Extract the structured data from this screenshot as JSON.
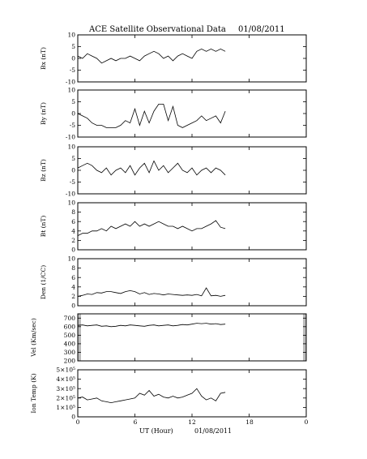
{
  "title": "ACE Satellite Observational Data",
  "title_date": "01/08/2011",
  "xlabel": "UT (Hour)",
  "xlabel_date": "01/08/2011",
  "x_ticks": [
    "0",
    "6",
    "12",
    "18",
    "0"
  ],
  "colors": {
    "line": "#000000",
    "gap_fill": "#bdbdbd",
    "frame": "#000000"
  },
  "chart_data": [
    {
      "type": "line",
      "ylabel": "Bx (nT)",
      "xlim": [
        0,
        24
      ],
      "ylim": [
        -10,
        10
      ],
      "yticks": [
        "-10",
        "-5",
        "0",
        "5",
        "10"
      ],
      "x": [
        0,
        0.5,
        1,
        1.5,
        2,
        2.5,
        3,
        3.5,
        4,
        4.5,
        5,
        5.5,
        6,
        6.5,
        7,
        7.5,
        8,
        8.5,
        9,
        9.5,
        10,
        10.5,
        11,
        11.5,
        12,
        12.5,
        13,
        13.5,
        14,
        14.5,
        15,
        15.5
      ],
      "values": [
        1,
        0,
        2,
        1,
        0,
        -2,
        -1,
        0,
        -1,
        0,
        0,
        1,
        0,
        -1,
        1,
        2,
        3,
        2,
        0,
        1,
        -1,
        1,
        2,
        1,
        0,
        3,
        4,
        3,
        4,
        3,
        4,
        3
      ],
      "data_gap": false
    },
    {
      "type": "line",
      "ylabel": "By (nT)",
      "xlim": [
        0,
        24
      ],
      "ylim": [
        -10,
        10
      ],
      "yticks": [
        "-10",
        "-5",
        "0",
        "5",
        "10"
      ],
      "x": [
        0,
        0.5,
        1,
        1.5,
        2,
        2.5,
        3,
        3.5,
        4,
        4.5,
        5,
        5.5,
        6,
        6.5,
        7,
        7.5,
        8,
        8.5,
        9,
        9.5,
        10,
        10.5,
        11,
        11.5,
        12,
        12.5,
        13,
        13.5,
        14,
        14.5,
        15,
        15.5
      ],
      "values": [
        0,
        -1,
        -2,
        -4,
        -5,
        -5,
        -6,
        -6,
        -6,
        -5,
        -3,
        -4,
        2,
        -5,
        1,
        -4,
        1,
        4,
        4,
        -3,
        3,
        -5,
        -6,
        -5,
        -4,
        -3,
        -1,
        -3,
        -2,
        -1,
        -4,
        1
      ],
      "data_gap": false
    },
    {
      "type": "line",
      "ylabel": "Bz (nT)",
      "xlim": [
        0,
        24
      ],
      "ylim": [
        -10,
        10
      ],
      "yticks": [
        "-10",
        "-5",
        "0",
        "5",
        "10"
      ],
      "x": [
        0,
        0.5,
        1,
        1.5,
        2,
        2.5,
        3,
        3.5,
        4,
        4.5,
        5,
        5.5,
        6,
        6.5,
        7,
        7.5,
        8,
        8.5,
        9,
        9.5,
        10,
        10.5,
        11,
        11.5,
        12,
        12.5,
        13,
        13.5,
        14,
        14.5,
        15,
        15.5
      ],
      "values": [
        1,
        2,
        3,
        2,
        0,
        -1,
        1,
        -2,
        0,
        1,
        -1,
        2,
        -2,
        1,
        3,
        -1,
        4,
        0,
        2,
        -1,
        1,
        3,
        0,
        -1,
        1,
        -2,
        0,
        1,
        -1,
        1,
        0,
        -2
      ],
      "data_gap": false
    },
    {
      "type": "line",
      "ylabel": "Bt (nT)",
      "xlim": [
        0,
        24
      ],
      "ylim": [
        0,
        10
      ],
      "yticks": [
        "0",
        "2",
        "4",
        "6",
        "8",
        "10"
      ],
      "x": [
        0,
        0.5,
        1,
        1.5,
        2,
        2.5,
        3,
        3.5,
        4,
        4.5,
        5,
        5.5,
        6,
        6.5,
        7,
        7.5,
        8,
        8.5,
        9,
        9.5,
        10,
        10.5,
        11,
        11.5,
        12,
        12.5,
        13,
        13.5,
        14,
        14.5,
        15,
        15.5
      ],
      "values": [
        3,
        3.5,
        3.5,
        4,
        4,
        4.5,
        4,
        5,
        4.5,
        5,
        5.5,
        5,
        6,
        5,
        5.5,
        5,
        5.5,
        6,
        5.5,
        5,
        5,
        4.5,
        5,
        4.5,
        4,
        4.5,
        4.5,
        5,
        5.5,
        6.2,
        4.8,
        4.5
      ],
      "data_gap": false
    },
    {
      "type": "line",
      "ylabel": "Den (1/CC)",
      "xlim": [
        0,
        24
      ],
      "ylim": [
        0,
        10
      ],
      "yticks": [
        "0",
        "2",
        "4",
        "6",
        "8",
        "10"
      ],
      "x": [
        0,
        0.5,
        1,
        1.5,
        2,
        2.5,
        3,
        3.5,
        4,
        4.5,
        5,
        5.5,
        6,
        6.5,
        7,
        7.5,
        8,
        8.5,
        9,
        9.5,
        10,
        10.5,
        11,
        11.5,
        12,
        12.5,
        13,
        13.5,
        14,
        14.5,
        15,
        15.5
      ],
      "values": [
        2,
        2.2,
        2.5,
        2.4,
        2.8,
        2.7,
        3,
        3,
        2.8,
        2.6,
        3,
        3.2,
        3,
        2.5,
        2.8,
        2.4,
        2.6,
        2.5,
        2.3,
        2.5,
        2.4,
        2.3,
        2.2,
        2.3,
        2.2,
        2.4,
        2.1,
        3.8,
        2.1,
        2.2,
        2,
        2.2
      ],
      "data_gap": false
    },
    {
      "type": "line",
      "ylabel": "Vel (Km/sec)",
      "xlim": [
        0,
        24
      ],
      "ylim": [
        200,
        750
      ],
      "yticks": [
        "200",
        "300",
        "400",
        "500",
        "600",
        "700"
      ],
      "x": [
        0,
        0.5,
        1,
        1.5,
        2,
        2.5,
        3,
        3.5,
        4,
        4.5,
        5,
        5.5,
        6,
        6.5,
        7,
        7.5,
        8,
        8.5,
        9,
        9.5,
        10,
        10.5,
        11,
        11.5,
        12,
        12.5,
        13,
        13.5,
        14,
        14.5,
        15,
        15.5
      ],
      "values": [
        615,
        620,
        610,
        615,
        620,
        605,
        610,
        600,
        605,
        615,
        610,
        620,
        615,
        610,
        605,
        615,
        620,
        610,
        615,
        620,
        610,
        615,
        625,
        620,
        630,
        640,
        635,
        640,
        630,
        635,
        625,
        630
      ],
      "data_gap": true
    },
    {
      "type": "line",
      "ylabel": "Ion Temp (K)",
      "xlim": [
        0,
        24
      ],
      "ylim": [
        0,
        500000
      ],
      "yticks": [
        "0",
        "1×10⁵",
        "2×10⁵",
        "3×10⁵",
        "4×10⁵",
        "5×10⁵"
      ],
      "x": [
        0,
        0.5,
        1,
        1.5,
        2,
        2.5,
        3,
        3.5,
        4,
        4.5,
        5,
        5.5,
        6,
        6.5,
        7,
        7.5,
        8,
        8.5,
        9,
        9.5,
        10,
        10.5,
        11,
        11.5,
        12,
        12.5,
        13,
        13.5,
        14,
        14.5,
        15,
        15.5
      ],
      "values": [
        200000,
        210000,
        180000,
        190000,
        200000,
        170000,
        160000,
        150000,
        160000,
        170000,
        180000,
        190000,
        200000,
        250000,
        230000,
        280000,
        220000,
        240000,
        210000,
        200000,
        220000,
        200000,
        210000,
        230000,
        250000,
        300000,
        220000,
        180000,
        200000,
        170000,
        250000,
        260000
      ],
      "data_gap": false
    }
  ]
}
